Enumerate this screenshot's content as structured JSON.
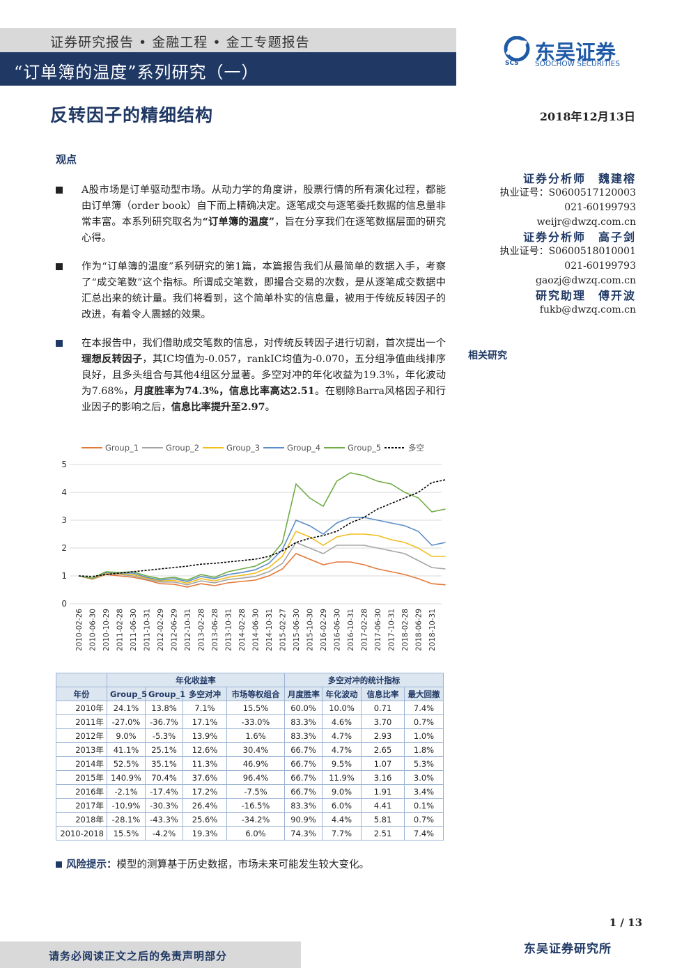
{
  "header": {
    "breadcrumb": "证券研究报告 • 金融工程 • 金工专题报告",
    "series_title": "“订单簿的温度”系列研究（一）"
  },
  "logo": {
    "name": "东吴证券",
    "english": "SOOCHOW SECURITIES",
    "abbr": "SCS"
  },
  "title": "反转因子的精细结构",
  "date": "2018年12月13日",
  "viewpoint": "观点",
  "bullets": [
    {
      "segments": [
        {
          "text": "A股市场是订单驱动型市场。从动力学的角度讲，股票行情的所有演化过程，都能由订单簿（order book）自下而上精确决定。逐笔成交与逐笔委托数据的信息量非常丰富。本系列研究取名为",
          "bold": false
        },
        {
          "text": "“订单簿的温度”",
          "bold": true
        },
        {
          "text": "，旨在分享我们在逐笔数据层面的研究心得。",
          "bold": false
        }
      ]
    },
    {
      "segments": [
        {
          "text": "作为“订单簿的温度”系列研究的第1篇，本篇报告我们从最简单的数据入手，考察了“成交笔数”这个指标。所谓成交笔数，即撮合交易的次数，是从逐笔成交数据中汇总出来的统计量。我们将看到，这个简单朴实的信息量，被用于传统反转因子的改进，有着令人震撼的效果。",
          "bold": false
        }
      ]
    },
    {
      "segments": [
        {
          "text": "在本报告中，我们借助成交笔数的信息，对传统反转因子进行切割，首次提出一个",
          "bold": false
        },
        {
          "text": "理想反转因子",
          "bold": true
        },
        {
          "text": "，其IC均值为-0.057，rankIC均值为-0.070，五分组净值曲线排序良好，且多头组合与其他4组区分显著。多空对冲的年化收益为19.3%，年化波动为7.68%，",
          "bold": false
        },
        {
          "text": "月度胜率为74.3%，信息比率高达2.51",
          "bold": true
        },
        {
          "text": "。在剔除Barra风格因子和行业因子的影响之后，",
          "bold": false
        },
        {
          "text": "信息比率提升至2.97",
          "bold": true
        },
        {
          "text": "。",
          "bold": false
        }
      ]
    }
  ],
  "analysts": [
    {
      "role": "证券分析师",
      "name": "魏建榕",
      "license": "执业证号：S0600517120003",
      "phone": "021-60199793",
      "email": "weijr@dwzq.com.cn"
    },
    {
      "role": "证券分析师",
      "name": "高子剑",
      "license": "执业证号：S0600518010001",
      "phone": "021-60199793",
      "email": "gaozj@dwzq.com.cn"
    },
    {
      "role": "研究助理",
      "name": "傅开波",
      "email": "fukb@dwzq.com.cn"
    }
  ],
  "related": "相关研究",
  "chart_data": {
    "type": "line",
    "legend": "top",
    "grid": true,
    "categories": [
      "2010-02-26",
      "2010-06-30",
      "2010-10-29",
      "2011-02-28",
      "2011-06-30",
      "2011-10-31",
      "2012-02-29",
      "2012-06-29",
      "2012-10-31",
      "2013-02-28",
      "2013-06-28",
      "2013-10-31",
      "2014-02-28",
      "2014-06-30",
      "2014-10-31",
      "2015-02-27",
      "2015-06-30",
      "2015-10-30",
      "2016-02-29",
      "2016-06-30",
      "2016-10-31",
      "2017-02-28",
      "2017-06-30",
      "2017-10-31",
      "2018-02-28",
      "2018-06-29",
      "2018-10-31",
      null
    ],
    "ylim": [
      0,
      5
    ],
    "yticks": [
      0,
      1,
      2,
      3,
      4,
      5
    ],
    "series": [
      {
        "name": "Group_1",
        "color": "#e2793a",
        "values": [
          1,
          0.88,
          1.05,
          1.0,
          0.95,
          0.85,
          0.72,
          0.7,
          0.6,
          0.72,
          0.65,
          0.75,
          0.8,
          0.85,
          1.0,
          1.25,
          1.8,
          1.6,
          1.4,
          1.5,
          1.5,
          1.4,
          1.25,
          1.15,
          1.05,
          0.9,
          0.72,
          0.68
        ]
      },
      {
        "name": "Group_2",
        "color": "#a5a5a5",
        "values": [
          1,
          0.9,
          1.08,
          1.05,
          1.0,
          0.88,
          0.78,
          0.78,
          0.68,
          0.82,
          0.75,
          0.87,
          0.92,
          0.98,
          1.15,
          1.45,
          2.2,
          2.0,
          1.8,
          2.1,
          2.1,
          2.1,
          2.0,
          1.9,
          1.8,
          1.55,
          1.3,
          1.25
        ]
      },
      {
        "name": "Group_3",
        "color": "#f2bd1d",
        "values": [
          1,
          0.9,
          1.1,
          1.08,
          1.05,
          0.92,
          0.82,
          0.84,
          0.74,
          0.9,
          0.82,
          0.95,
          1.02,
          1.1,
          1.3,
          1.7,
          2.6,
          2.4,
          2.1,
          2.4,
          2.5,
          2.5,
          2.45,
          2.3,
          2.2,
          2.0,
          1.7,
          1.7
        ]
      },
      {
        "name": "Group_4",
        "color": "#5b8dc8",
        "values": [
          1,
          0.91,
          1.12,
          1.1,
          1.1,
          0.95,
          0.85,
          0.9,
          0.8,
          0.98,
          0.9,
          1.05,
          1.12,
          1.22,
          1.45,
          1.95,
          3.0,
          2.8,
          2.5,
          2.9,
          3.1,
          3.1,
          3.0,
          2.9,
          2.8,
          2.6,
          2.1,
          2.2
        ]
      },
      {
        "name": "Group_5",
        "color": "#6fac46",
        "values": [
          1,
          0.92,
          1.15,
          1.12,
          1.15,
          1.0,
          0.9,
          0.95,
          0.85,
          1.05,
          0.95,
          1.15,
          1.25,
          1.35,
          1.6,
          2.2,
          4.3,
          3.8,
          3.5,
          4.4,
          4.7,
          4.6,
          4.4,
          4.3,
          4.0,
          3.8,
          3.3,
          3.4
        ]
      },
      {
        "name": "多空",
        "color": "#000000",
        "style": "dashed",
        "values": [
          1,
          0.98,
          1.05,
          1.1,
          1.15,
          1.2,
          1.25,
          1.3,
          1.35,
          1.42,
          1.45,
          1.5,
          1.55,
          1.6,
          1.7,
          1.9,
          2.2,
          2.35,
          2.45,
          2.6,
          2.9,
          3.1,
          3.4,
          3.6,
          3.8,
          4.0,
          4.35,
          4.45
        ]
      }
    ]
  },
  "table": {
    "group_headers": [
      "年化收益率",
      "多空对冲的统计指标"
    ],
    "columns": [
      "年份",
      "Group_5",
      "Group_1",
      "多空对冲",
      "市场等权组合",
      "月度胜率",
      "年化波动",
      "信息比率",
      "最大回撤"
    ],
    "rows": [
      [
        "2010年",
        "24.1%",
        "13.8%",
        "7.1%",
        "15.5%",
        "60.0%",
        "10.0%",
        "0.71",
        "7.4%"
      ],
      [
        "2011年",
        "-27.0%",
        "-36.7%",
        "17.1%",
        "-33.0%",
        "83.3%",
        "4.6%",
        "3.70",
        "0.7%"
      ],
      [
        "2012年",
        "9.0%",
        "-5.3%",
        "13.9%",
        "1.6%",
        "83.3%",
        "4.7%",
        "2.93",
        "1.0%"
      ],
      [
        "2013年",
        "41.1%",
        "25.1%",
        "12.6%",
        "30.4%",
        "66.7%",
        "4.7%",
        "2.65",
        "1.8%"
      ],
      [
        "2014年",
        "52.5%",
        "35.1%",
        "11.3%",
        "46.9%",
        "66.7%",
        "9.5%",
        "1.07",
        "5.3%"
      ],
      [
        "2015年",
        "140.9%",
        "70.4%",
        "37.6%",
        "96.4%",
        "66.7%",
        "11.9%",
        "3.16",
        "3.0%"
      ],
      [
        "2016年",
        "-2.1%",
        "-17.4%",
        "17.2%",
        "-7.5%",
        "66.7%",
        "9.0%",
        "1.91",
        "3.4%"
      ],
      [
        "2017年",
        "-10.9%",
        "-30.3%",
        "26.4%",
        "-16.5%",
        "83.3%",
        "6.0%",
        "4.41",
        "0.1%"
      ],
      [
        "2018年",
        "-28.1%",
        "-43.3%",
        "25.6%",
        "-34.2%",
        "90.9%",
        "4.4%",
        "5.81",
        "0.7%"
      ],
      [
        "2010-2018",
        "15.5%",
        "-4.2%",
        "19.3%",
        "6.0%",
        "74.3%",
        "7.7%",
        "2.51",
        "7.4%"
      ]
    ]
  },
  "risk": {
    "label": "风险提示：",
    "text": "模型的测算基于历史数据，市场未来可能发生较大变化。"
  },
  "footer": {
    "page": "1 / 13",
    "disclaimer": "请务必阅读正文之后的免责声明部分",
    "company": "东吴证券研究所"
  }
}
